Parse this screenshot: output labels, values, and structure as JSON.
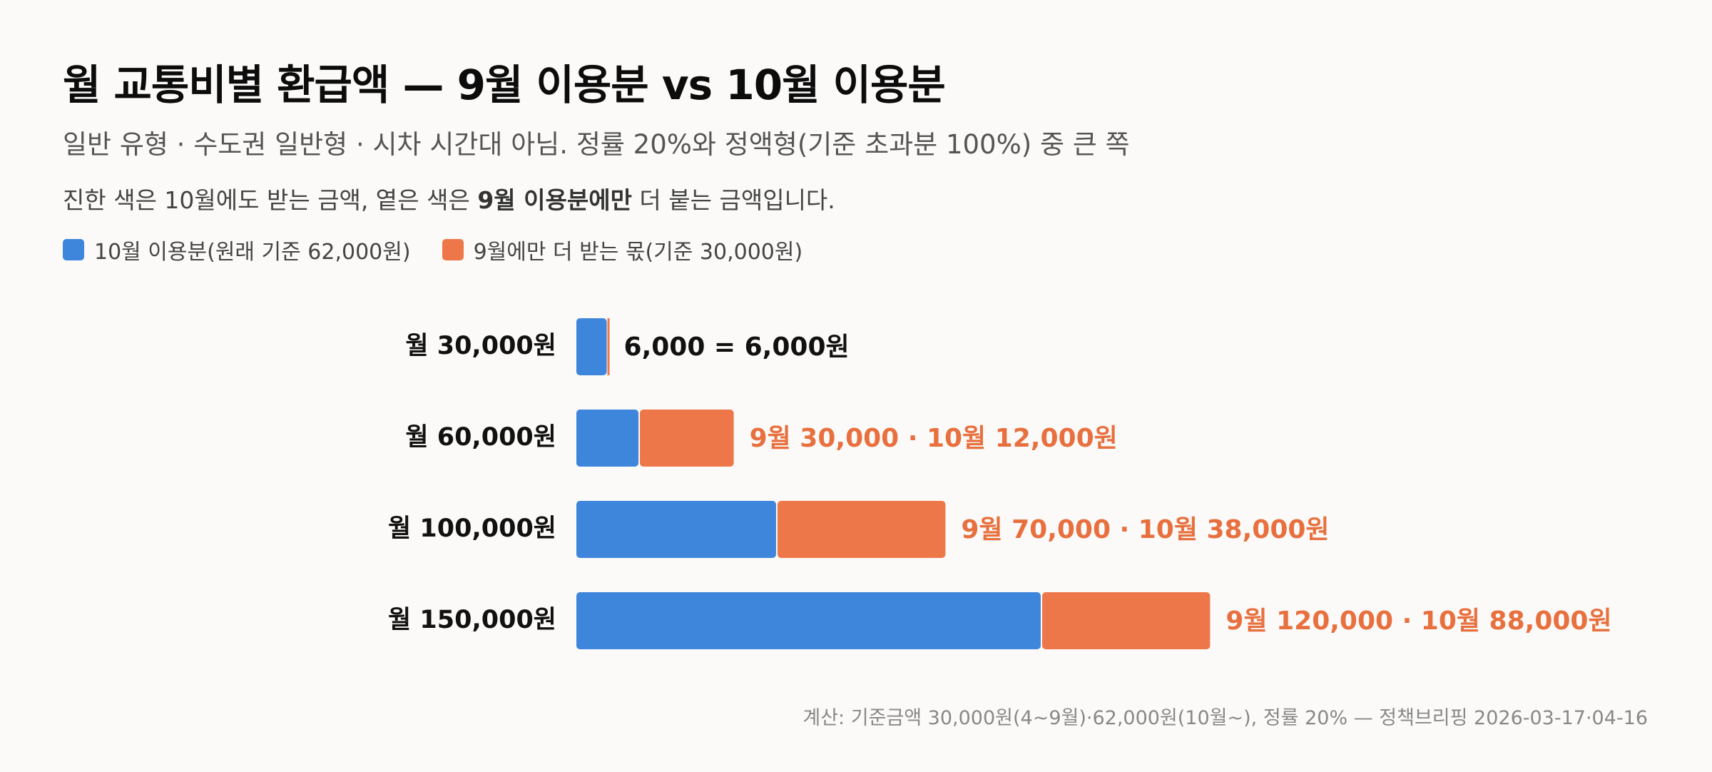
{
  "title": "월 교통비별 환급액 — 9월 이용분 vs 10월 이용분",
  "subtitle": "일반 유형 · 수도권 일반형 · 시차 시간대 아님. 정률 20%와 정액형(기준 초과분 100%) 중 큰 쪽",
  "note": {
    "prefix": "진한 색은 10월에도 받는 금액, 옅은 색은 ",
    "bold": "9월 이용분에만",
    "suffix": " 더 붙는 금액입니다."
  },
  "colors": {
    "october": "#3e86dc",
    "september_extra": "#ee7749",
    "extra_label": "#e8703f"
  },
  "chart_data": {
    "type": "bar",
    "orientation": "horizontal",
    "stacked": true,
    "categories": [
      "월 30,000원",
      "월 60,000원",
      "월 100,000원",
      "월 150,000원"
    ],
    "series": [
      {
        "name": "10월 이용분(원래 기준 62,000원)",
        "values": [
          6000,
          12000,
          38000,
          88000
        ]
      },
      {
        "name": "9월에만 더 받는 몫(기준 30,000원)",
        "values": [
          0,
          18000,
          32000,
          32000
        ]
      }
    ],
    "data_labels": [
      "6,000 = 6,000원",
      "9월 30,000 · 10월 12,000원",
      "9월 70,000 · 10월 38,000원",
      "9월 120,000 · 10월 88,000원"
    ],
    "xlim": [
      0,
      120000
    ],
    "legend": "top-left",
    "grid": false
  },
  "footnote": "계산: 기준금액 30,000원(4~9월)·62,000원(10월~), 정률 20% — 정책브리핑 2026-03-17·04-16"
}
